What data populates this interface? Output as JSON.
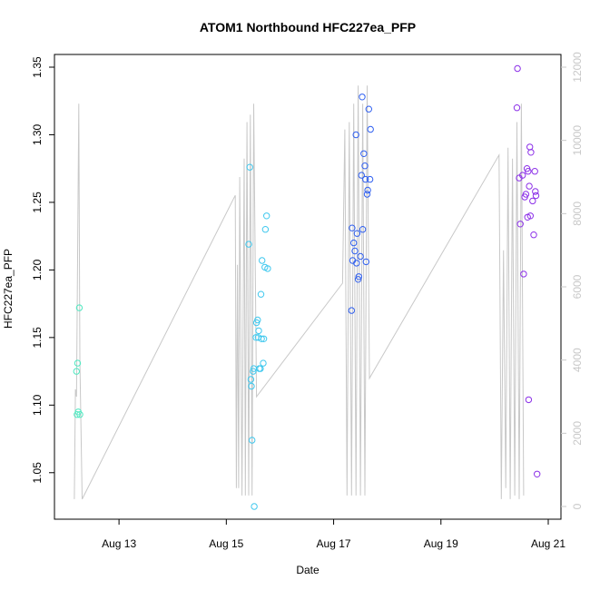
{
  "chart_data": {
    "type": "scatter",
    "title": "ATOM1 Northbound HFC227ea_PFP",
    "xlabel": "Date",
    "ylabel": "HFC227ea_PFP",
    "xlim": [
      "2016-08-12T00:00",
      "2016-08-21T00:00"
    ],
    "ylim": [
      1.025,
      1.35
    ],
    "y2lim": [
      0,
      12000
    ],
    "x_ticks": [
      {
        "label": "Aug 13",
        "date": "2016-08-13T00:00"
      },
      {
        "label": "Aug 15",
        "date": "2016-08-15T00:00"
      },
      {
        "label": "Aug 17",
        "date": "2016-08-17T00:00"
      },
      {
        "label": "Aug 19",
        "date": "2016-08-19T00:00"
      },
      {
        "label": "Aug 21",
        "date": "2016-08-21T00:00"
      }
    ],
    "y_ticks": [
      "1.05",
      "1.10",
      "1.15",
      "1.20",
      "1.25",
      "1.30",
      "1.35"
    ],
    "y2_ticks": [
      "0",
      "2000",
      "4000",
      "6000",
      "8000",
      "10000",
      "12000"
    ],
    "grid": false,
    "legend": "none",
    "series": [
      {
        "color": "#4ee8c0",
        "points": [
          [
            "2016-08-12T05:00",
            1.125
          ],
          [
            "2016-08-12T05:30",
            1.131
          ],
          [
            "2016-08-12T05:15",
            1.093
          ],
          [
            "2016-08-12T05:45",
            1.095
          ],
          [
            "2016-08-12T06:30",
            1.093
          ],
          [
            "2016-08-12T06:15",
            1.172
          ]
        ]
      },
      {
        "color": "#40c8ee",
        "points": [
          [
            "2016-08-15T10:30",
            1.276
          ],
          [
            "2016-08-15T10:00",
            1.219
          ],
          [
            "2016-08-15T11:00",
            1.119
          ],
          [
            "2016-08-15T11:15",
            1.114
          ],
          [
            "2016-08-15T11:30",
            1.074
          ],
          [
            "2016-08-15T12:00",
            1.125
          ],
          [
            "2016-08-15T12:15",
            1.127
          ],
          [
            "2016-08-15T12:30",
            1.025
          ],
          [
            "2016-08-15T13:15",
            1.15
          ],
          [
            "2016-08-15T13:30",
            1.161
          ],
          [
            "2016-08-15T14:00",
            1.163
          ],
          [
            "2016-08-15T14:15",
            1.15
          ],
          [
            "2016-08-15T14:30",
            1.155
          ],
          [
            "2016-08-15T14:45",
            1.127
          ],
          [
            "2016-08-15T15:15",
            1.127
          ],
          [
            "2016-08-15T15:30",
            1.182
          ],
          [
            "2016-08-15T15:45",
            1.149
          ],
          [
            "2016-08-15T16:00",
            1.207
          ],
          [
            "2016-08-15T16:30",
            1.131
          ],
          [
            "2016-08-15T16:45",
            1.149
          ],
          [
            "2016-08-15T17:15",
            1.202
          ],
          [
            "2016-08-15T17:30",
            1.23
          ],
          [
            "2016-08-15T18:00",
            1.24
          ],
          [
            "2016-08-15T18:30",
            1.201
          ]
        ]
      },
      {
        "color": "#3060f0",
        "points": [
          [
            "2016-08-17T08:00",
            1.17
          ],
          [
            "2016-08-17T08:15",
            1.231
          ],
          [
            "2016-08-17T08:30",
            1.207
          ],
          [
            "2016-08-17T09:00",
            1.22
          ],
          [
            "2016-08-17T09:30",
            1.214
          ],
          [
            "2016-08-17T10:00",
            1.3
          ],
          [
            "2016-08-17T10:15",
            1.205
          ],
          [
            "2016-08-17T10:30",
            1.227
          ],
          [
            "2016-08-17T11:00",
            1.193
          ],
          [
            "2016-08-17T11:15",
            1.195
          ],
          [
            "2016-08-17T12:00",
            1.21
          ],
          [
            "2016-08-17T12:30",
            1.27
          ],
          [
            "2016-08-17T12:45",
            1.328
          ],
          [
            "2016-08-17T13:00",
            1.23
          ],
          [
            "2016-08-17T13:30",
            1.286
          ],
          [
            "2016-08-17T14:00",
            1.277
          ],
          [
            "2016-08-17T14:15",
            1.267
          ],
          [
            "2016-08-17T14:30",
            1.206
          ],
          [
            "2016-08-17T15:00",
            1.256
          ],
          [
            "2016-08-17T15:15",
            1.259
          ],
          [
            "2016-08-17T15:45",
            1.319
          ],
          [
            "2016-08-17T16:15",
            1.267
          ],
          [
            "2016-08-17T16:30",
            1.304
          ]
        ]
      },
      {
        "color": "#8c30e8",
        "points": [
          [
            "2016-08-20T10:15",
            1.349
          ],
          [
            "2016-08-20T10:00",
            1.32
          ],
          [
            "2016-08-20T11:00",
            1.268
          ],
          [
            "2016-08-20T11:30",
            1.234
          ],
          [
            "2016-08-20T12:30",
            1.27
          ],
          [
            "2016-08-20T13:00",
            1.197
          ],
          [
            "2016-08-20T13:30",
            1.254
          ],
          [
            "2016-08-20T14:00",
            1.256
          ],
          [
            "2016-08-20T14:30",
            1.275
          ],
          [
            "2016-08-20T14:45",
            1.239
          ],
          [
            "2016-08-20T15:00",
            1.273
          ],
          [
            "2016-08-20T15:15",
            1.104
          ],
          [
            "2016-08-20T15:30",
            1.262
          ],
          [
            "2016-08-20T15:45",
            1.291
          ],
          [
            "2016-08-20T16:00",
            1.24
          ],
          [
            "2016-08-20T16:15",
            1.287
          ],
          [
            "2016-08-20T17:00",
            1.251
          ],
          [
            "2016-08-20T17:30",
            1.226
          ],
          [
            "2016-08-20T18:00",
            1.273
          ],
          [
            "2016-08-20T18:15",
            1.258
          ],
          [
            "2016-08-20T18:30",
            1.255
          ],
          [
            "2016-08-20T19:00",
            1.049
          ]
        ]
      }
    ],
    "secondary_line": {
      "color": "#c8c8c8",
      "axis": "right",
      "points": [
        [
          "2016-08-12T04:00",
          200
        ],
        [
          "2016-08-12T04:30",
          3200
        ],
        [
          "2016-08-12T05:00",
          3000
        ],
        [
          "2016-08-12T06:00",
          11000
        ],
        [
          "2016-08-12T06:30",
          4000
        ],
        [
          "2016-08-12T07:30",
          200
        ],
        [
          "2016-08-15T04:00",
          8500
        ],
        [
          "2016-08-15T04:30",
          500
        ],
        [
          "2016-08-15T05:00",
          6600
        ],
        [
          "2016-08-15T05:30",
          500
        ],
        [
          "2016-08-15T06:00",
          9000
        ],
        [
          "2016-08-15T07:00",
          300
        ],
        [
          "2016-08-15T08:00",
          9500
        ],
        [
          "2016-08-15T08:30",
          300
        ],
        [
          "2016-08-15T09:15",
          10500
        ],
        [
          "2016-08-15T10:00",
          300
        ],
        [
          "2016-08-15T10:45",
          10700
        ],
        [
          "2016-08-15T11:30",
          300
        ],
        [
          "2016-08-15T12:15",
          11000
        ],
        [
          "2016-08-15T13:30",
          3000
        ],
        [
          "2016-08-17T04:00",
          6100
        ],
        [
          "2016-08-17T05:00",
          10300
        ],
        [
          "2016-08-17T06:00",
          300
        ],
        [
          "2016-08-17T07:00",
          10500
        ],
        [
          "2016-08-17T08:00",
          300
        ],
        [
          "2016-08-17T09:00",
          11000
        ],
        [
          "2016-08-17T10:00",
          300
        ],
        [
          "2016-08-17T11:00",
          11500
        ],
        [
          "2016-08-17T12:00",
          300
        ],
        [
          "2016-08-17T13:00",
          11000
        ],
        [
          "2016-08-17T14:00",
          300
        ],
        [
          "2016-08-17T15:00",
          11500
        ],
        [
          "2016-08-17T16:00",
          3500
        ],
        [
          "2016-08-20T02:00",
          9600
        ],
        [
          "2016-08-20T03:00",
          200
        ],
        [
          "2016-08-20T04:00",
          7000
        ],
        [
          "2016-08-20T05:00",
          500
        ],
        [
          "2016-08-20T06:00",
          9800
        ],
        [
          "2016-08-20T07:00",
          200
        ],
        [
          "2016-08-20T08:00",
          9500
        ],
        [
          "2016-08-20T09:00",
          300
        ],
        [
          "2016-08-20T10:00",
          10500
        ],
        [
          "2016-08-20T11:00",
          200
        ],
        [
          "2016-08-20T12:00",
          11000
        ],
        [
          "2016-08-20T13:00",
          300
        ]
      ]
    }
  }
}
